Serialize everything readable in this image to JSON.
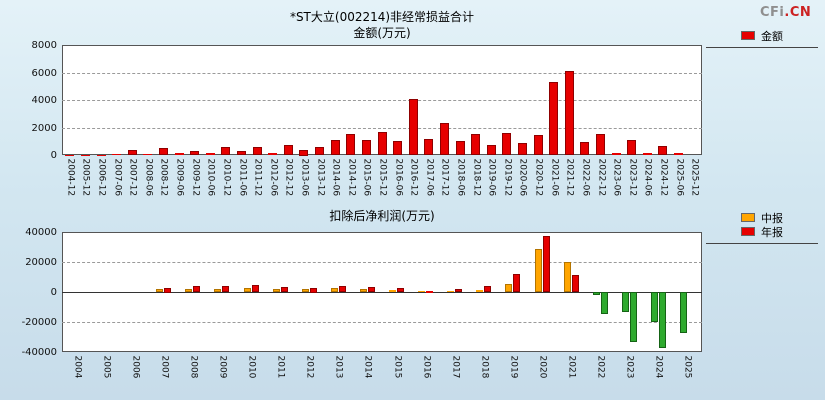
{
  "logo": {
    "prefix": "CFi",
    "suffix": ".CN",
    "prefix_color": "#8f8f8f",
    "suffix_color": "#cc2222"
  },
  "charts": [
    {
      "id": "nonrecurring-gains",
      "title": "*ST大立(002214)非经常损益合计",
      "subtitle": "金额(万元)",
      "legend": [
        {
          "label": "金额",
          "color": "#e60000"
        }
      ],
      "chart_data": {
        "type": "bar",
        "title": "*ST大立(002214)非经常损益合计",
        "ylabel": "金额(万元)",
        "ylim": [
          0,
          8000
        ],
        "yticks": [
          0,
          2000,
          4000,
          6000,
          8000
        ],
        "grid": "dashed-horizontal",
        "legend_position": "top-right-outside",
        "categories": [
          "2004-12",
          "2005-12",
          "2006-12",
          "2007-06",
          "2007-12",
          "2008-06",
          "2008-12",
          "2009-06",
          "2009-12",
          "2010-06",
          "2010-12",
          "2011-06",
          "2011-12",
          "2012-06",
          "2012-12",
          "2013-06",
          "2013-12",
          "2014-06",
          "2014-12",
          "2015-06",
          "2015-12",
          "2016-06",
          "2016-12",
          "2017-06",
          "2017-12",
          "2018-06",
          "2018-12",
          "2019-06",
          "2019-12",
          "2020-06",
          "2020-12",
          "2021-06",
          "2021-12",
          "2022-06",
          "2022-12",
          "2023-06",
          "2023-12",
          "2024-06",
          "2024-12",
          "2025-06",
          "2025-12"
        ],
        "series": [
          {
            "name": "金额",
            "color": "#e60000",
            "border": "#8f0000",
            "values": [
              10,
              20,
              10,
              90,
              350,
              80,
              500,
              160,
              260,
              120,
              600,
              300,
              560,
              150,
              700,
              400,
              560,
              1100,
              1500,
              1080,
              1700,
              1000,
              4100,
              1150,
              2300,
              1000,
              1500,
              700,
              1600,
              900,
              1450,
              5300,
              6100,
              950,
              1500,
              160,
              1100,
              160,
              650,
              110,
              null
            ]
          }
        ]
      }
    },
    {
      "id": "net-profit-after-deduction",
      "title": "扣除后净利润(万元)",
      "legend": [
        {
          "label": "中报",
          "color": "#ffa500"
        },
        {
          "label": "年报",
          "color": "#e60000"
        }
      ],
      "chart_data": {
        "type": "bar",
        "title": "扣除后净利润(万元)",
        "ylim": [
          -40000,
          40000
        ],
        "yticks": [
          -40000,
          -20000,
          0,
          20000,
          40000
        ],
        "grid": "dashed-horizontal",
        "legend_position": "top-right-outside",
        "negative_color": "#2eaa2e",
        "negative_border": "#156315",
        "categories": [
          "2004",
          "2005",
          "2006",
          "2007",
          "2008",
          "2009",
          "2010",
          "2011",
          "2012",
          "2013",
          "2014",
          "2015",
          "2016",
          "2017",
          "2018",
          "2019",
          "2020",
          "2021",
          "2022",
          "2023",
          "2024",
          "2025"
        ],
        "series": [
          {
            "name": "中报",
            "color": "#ffa500",
            "border": "#b37400",
            "values": [
              null,
              null,
              null,
              2000,
              2200,
              2000,
              2500,
              2000,
              1800,
              2500,
              2000,
              1500,
              400,
              800,
              1500,
              5300,
              28700,
              20200,
              -2000,
              -13000,
              -20000,
              -27000
            ]
          },
          {
            "name": "年报",
            "color": "#e60000",
            "border": "#8f0000",
            "values": [
              null,
              null,
              null,
              3000,
              3800,
              3800,
              4500,
              3200,
              3000,
              4200,
              3600,
              2600,
              1000,
              2200,
              3800,
              12000,
              37300,
              11300,
              -14700,
              -33000,
              -37000,
              null
            ]
          }
        ]
      }
    }
  ]
}
